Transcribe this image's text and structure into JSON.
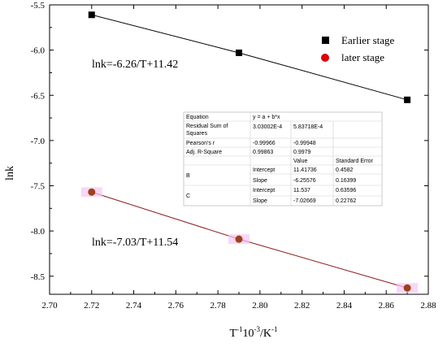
{
  "chart_data": {
    "type": "scatter",
    "xlabel_main": "T",
    "xlabel_sup1": "-1",
    "xlabel_mid": "10",
    "xlabel_sup2": "-3",
    "xlabel_tail": "/K",
    "xlabel_sup3": "-1",
    "ylabel": "lnk",
    "xlim": [
      2.7,
      2.88
    ],
    "ylim": [
      -8.7,
      -5.5
    ],
    "xticks": [
      "2.70",
      "2.72",
      "2.74",
      "2.76",
      "2.78",
      "2.80",
      "2.82",
      "2.84",
      "2.86",
      "2.88"
    ],
    "yticks": [
      "-5.5",
      "-6.0",
      "-6.5",
      "-7.0",
      "-7.5",
      "-8.0",
      "-8.5"
    ],
    "series": [
      {
        "name": "Earlier stage",
        "marker": "square",
        "color": "#000000",
        "line_color": "#000000",
        "x": [
          2.72,
          2.79,
          2.87
        ],
        "y": [
          -5.61,
          -6.03,
          -6.55
        ],
        "fit_equation": "lnk=-6.26/T+11.42"
      },
      {
        "name": "later stage",
        "marker": "circle",
        "color": "#a0401a",
        "line_color": "#8b1a1a",
        "legend_color": "#e00000",
        "x": [
          2.72,
          2.79,
          2.87
        ],
        "y": [
          -7.57,
          -8.09,
          -8.63
        ],
        "fit_equation": "lnk=-7.03/T+11.54"
      }
    ],
    "table": {
      "equation_label": "Equation",
      "equation_value": "y = a + b*x",
      "rss_label_1": "Residual Sum of",
      "rss_label_2": "Squares",
      "rss_values": [
        "3.03002E-4",
        "5.83718E-4"
      ],
      "pearson_label": "Pearson's r",
      "pearson_values": [
        "-0.99966",
        "-0.99948"
      ],
      "adjr_label": "Adj. R-Square",
      "adjr_values": [
        "0.99863",
        "0.9979"
      ],
      "col_value": "Value",
      "col_error": "Standard Error",
      "rows": [
        {
          "group": "B",
          "param": "Intercept",
          "value": "11.41736",
          "error": "0.4582"
        },
        {
          "group": "",
          "param": "Slope",
          "value": "-6.25576",
          "error": "0.16399"
        },
        {
          "group": "C",
          "param": "Intercept",
          "value": "11.537",
          "error": "0.63596"
        },
        {
          "group": "",
          "param": "Slope",
          "value": "-7.02669",
          "error": "0.22762"
        }
      ]
    }
  }
}
